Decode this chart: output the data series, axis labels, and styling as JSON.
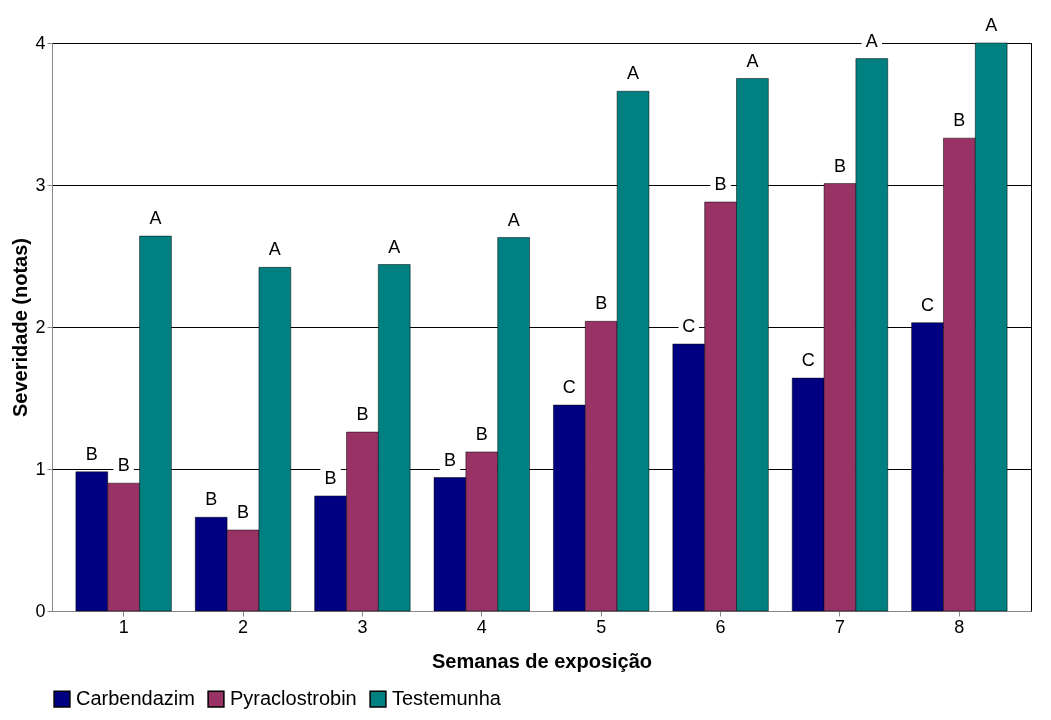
{
  "chart_data": {
    "type": "bar",
    "xlabel": "Semanas de exposição",
    "ylabel": "Severidade (notas)",
    "categories": [
      "1",
      "2",
      "3",
      "4",
      "5",
      "6",
      "7",
      "8"
    ],
    "series": [
      {
        "name": "Carbendazim",
        "color": "#000080",
        "values": [
          0.98,
          0.66,
          0.81,
          0.94,
          1.45,
          1.88,
          1.64,
          2.03
        ],
        "value_labels": [
          "B",
          "B",
          "B",
          "B",
          "C",
          "C",
          "C",
          "C"
        ]
      },
      {
        "name": "Pyraclostrobin",
        "color": "#993366",
        "values": [
          0.9,
          0.57,
          1.26,
          1.12,
          2.04,
          2.88,
          3.01,
          3.33
        ],
        "value_labels": [
          "B",
          "B",
          "B",
          "B",
          "B",
          "B",
          "B",
          "B"
        ]
      },
      {
        "name": "Testemunha",
        "color": "#008080",
        "values": [
          2.64,
          2.42,
          2.44,
          2.63,
          3.66,
          3.75,
          3.89,
          4.0
        ],
        "value_labels": [
          "A",
          "A",
          "A",
          "A",
          "A",
          "A",
          "A",
          "A"
        ]
      }
    ],
    "ylim": [
      0,
      4
    ],
    "yticks": [
      0,
      1,
      2,
      3,
      4
    ],
    "grid": "y",
    "legend": "bottom"
  }
}
